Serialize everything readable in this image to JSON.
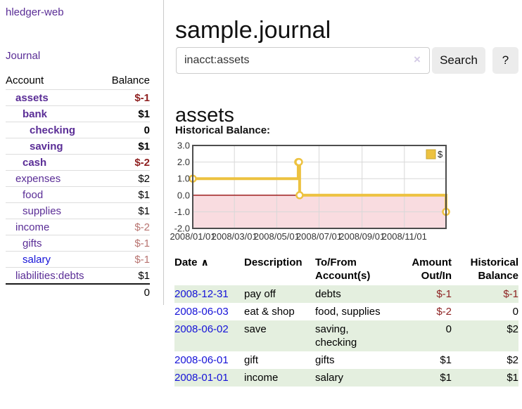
{
  "app": {
    "brand": "hledger-web",
    "journal_label": "Journal"
  },
  "sidebar": {
    "header": {
      "account": "Account",
      "balance": "Balance"
    },
    "accounts": [
      {
        "name": "assets",
        "depth": 0,
        "balance": "$-1",
        "bold": true
      },
      {
        "name": "bank",
        "depth": 1,
        "balance": "$1",
        "bold": true
      },
      {
        "name": "checking",
        "depth": 2,
        "balance": "0",
        "bold": true
      },
      {
        "name": "saving",
        "depth": 2,
        "balance": "$1",
        "bold": true
      },
      {
        "name": "cash",
        "depth": 1,
        "balance": "$-2",
        "bold": true
      },
      {
        "name": "expenses",
        "depth": 0,
        "balance": "$2",
        "bold": false
      },
      {
        "name": "food",
        "depth": 1,
        "balance": "$1",
        "bold": false
      },
      {
        "name": "supplies",
        "depth": 1,
        "balance": "$1",
        "bold": false
      },
      {
        "name": "income",
        "depth": 0,
        "balance": "$-2",
        "bold": false
      },
      {
        "name": "gifts",
        "depth": 1,
        "balance": "$-1",
        "bold": false
      },
      {
        "name": "salary",
        "depth": 1,
        "balance": "$-1",
        "bold": false,
        "blue": true
      },
      {
        "name": "liabilities:debts",
        "depth": 0,
        "balance": "$1",
        "bold": false
      }
    ],
    "total": "0"
  },
  "header": {
    "title": "sample.journal"
  },
  "search": {
    "value": "inacct:assets",
    "clear_icon": "×",
    "button_label": "Search",
    "help_label": "?"
  },
  "account_page": {
    "heading": "assets",
    "chart_title": "Historical Balance:"
  },
  "chart_data": {
    "type": "line",
    "step": true,
    "x_range": [
      "2008-01-01",
      "2008-12-31"
    ],
    "ylim": [
      -2.0,
      3.0
    ],
    "yticks": [
      3.0,
      2.0,
      1.0,
      0.0,
      -1.0,
      -2.0
    ],
    "xticks": [
      {
        "date": "2008-01-01",
        "label": "2008/01/01"
      },
      {
        "date": "2008-03-01",
        "label": "2008/03/01"
      },
      {
        "date": "2008-05-01",
        "label": "2008/05/01"
      },
      {
        "date": "2008-07-01",
        "label": "2008/07/01"
      },
      {
        "date": "2008-09-01",
        "label": "2008/09/01"
      },
      {
        "date": "2008-11-01",
        "label": "2008/11/01"
      }
    ],
    "series": [
      {
        "name": "$",
        "color": "#edc240",
        "points": [
          {
            "date": "2008-01-01",
            "value": 1
          },
          {
            "date": "2008-06-01",
            "value": 2
          },
          {
            "date": "2008-06-02",
            "value": 2
          },
          {
            "date": "2008-06-03",
            "value": 0
          },
          {
            "date": "2008-12-31",
            "value": -1
          }
        ]
      }
    ],
    "legend": {
      "label": "$",
      "swatch_color": "#edc240"
    },
    "grid_color": "#d8d8d8",
    "negative_region_color": "#f9dce0",
    "zero_line_color": "#9e1f1f",
    "border_color": "#4d4d4d"
  },
  "register": {
    "columns": {
      "date": "Date",
      "description": "Description",
      "accounts": "To/From Account(s)",
      "amount": "Amount Out/In",
      "balance": "Historical Balance"
    },
    "date_sort_icon": "∧",
    "rows": [
      {
        "date": "2008-12-31",
        "description": "pay off",
        "accounts": "debts",
        "amount": "$-1",
        "balance": "$-1"
      },
      {
        "date": "2008-06-03",
        "description": "eat & shop",
        "accounts": "food, supplies",
        "amount": "$-2",
        "balance": "0"
      },
      {
        "date": "2008-06-02",
        "description": "save",
        "accounts": "saving, checking",
        "amount": "0",
        "balance": "$2"
      },
      {
        "date": "2008-06-01",
        "description": "gift",
        "accounts": "gifts",
        "amount": "$1",
        "balance": "$2"
      },
      {
        "date": "2008-01-01",
        "description": "income",
        "accounts": "salary",
        "amount": "$1",
        "balance": "$1"
      }
    ]
  }
}
